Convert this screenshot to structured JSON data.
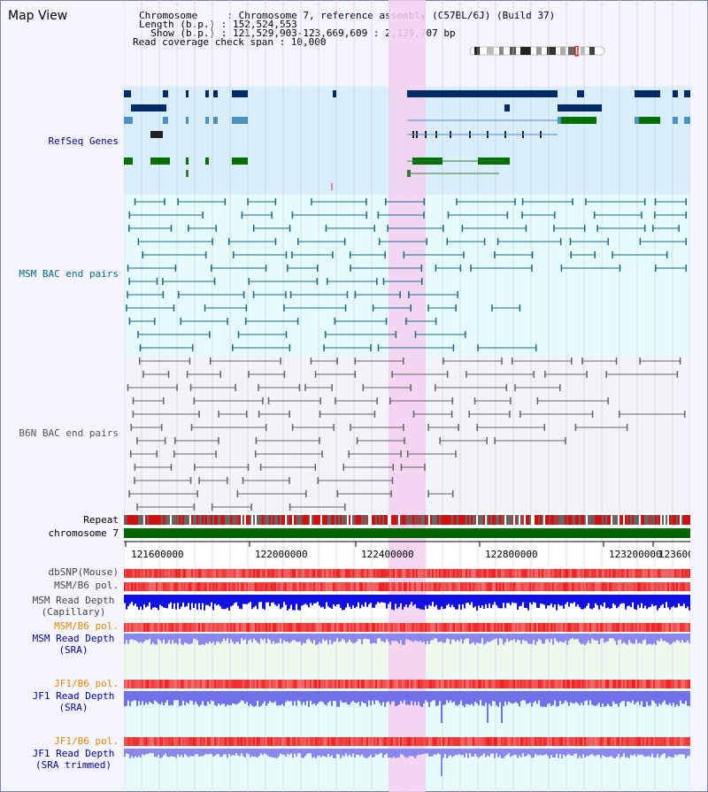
{
  "view": {
    "title": "Map View"
  },
  "header": {
    "lines": [
      "Chromosome     : Chromosome 7, reference assembly (C57BL/6J) (Build 37)",
      "Length (b.p.) : 152,524,553",
      "  Show (b.p.) : 121,529,903-123,669,609 : 2,139,707 bp",
      "Read coverage check span : 10,000"
    ]
  },
  "tracks": {
    "refseq": "RefSeq Genes",
    "msm_bac": "MSM BAC end pairs",
    "b6n_bac": "B6N BAC end pairs",
    "repeat": "Repeat",
    "chromosome": "chromosome 7",
    "dbsnp": "dbSNP(Mouse)",
    "msm_b6_pol_1": "MSM/B6 pol.",
    "msm_depth_cap_1": "MSM Read Depth",
    "msm_depth_cap_2": "(Capillary)",
    "msm_b6_pol_2": "MSM/B6 pol.",
    "msm_depth_sra_1": "MSM Read Depth",
    "msm_depth_sra_2": "(SRA)",
    "jf1_b6_pol_1": "JF1/B6 pol.",
    "jf1_depth_sra_1": "JF1 Read Depth",
    "jf1_depth_sra_2": "(SRA)",
    "jf1_b6_pol_2": "JF1/B6 pol.",
    "jf1_depth_trim_1": "JF1 Read Depth",
    "jf1_depth_trim_2": "(SRA trimmed)"
  },
  "axis": {
    "ticks": [
      "121600000",
      "122000000",
      "122400000",
      "122800000",
      "123200000",
      "123600"
    ]
  },
  "colors": {
    "blue_label": "#0000aa",
    "teal_label": "#006a8a",
    "gray_label": "#555555",
    "orange_label": "#e08a00",
    "highlight": "#f5d0f0",
    "refseq_bg": "#d8eefa",
    "msm_bg": "#e6fbfb",
    "b6n_bg": "#f3f3fa",
    "chrom_bar": "#006600"
  }
}
